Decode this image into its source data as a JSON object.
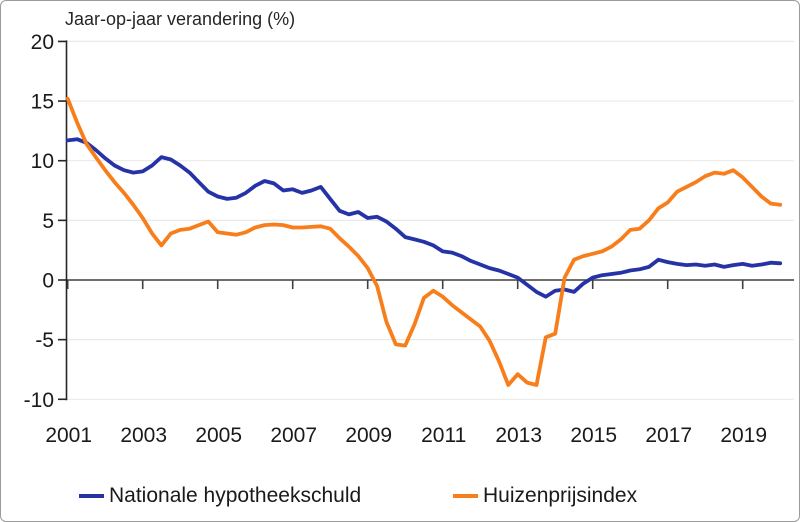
{
  "window": {
    "background": "#ffffff",
    "border_color": "#9b9b9b"
  },
  "chart_data": {
    "type": "line",
    "title": "Jaar-op-jaar verandering (%)",
    "xlabel": "",
    "ylabel": "",
    "ylim": [
      -10,
      20
    ],
    "xlim": [
      2001.0,
      2020.4
    ],
    "grid": "horizontal",
    "legend_position": "bottom",
    "x_start": 2001.0,
    "x_step": 0.25,
    "x_tick_labels": [
      "2001",
      "2003",
      "2005",
      "2007",
      "2009",
      "2011",
      "2013",
      "2015",
      "2017",
      "2019"
    ],
    "x_tick_years": [
      2001,
      2003,
      2005,
      2007,
      2009,
      2011,
      2013,
      2015,
      2017,
      2019
    ],
    "y_ticks": [
      20,
      15,
      10,
      5,
      0,
      -5,
      -10
    ],
    "y_tick_labels": [
      "20",
      "15",
      "10",
      "5",
      "0",
      "-5",
      "-10"
    ],
    "zero_line_color": "#3f3f3f",
    "gridline_color": "#e9e9e9",
    "axis_color": "#262626",
    "series": [
      {
        "name": "Nationale hypotheekschuld",
        "color": "#2533a6",
        "values": [
          11.7,
          11.8,
          11.5,
          10.9,
          10.2,
          9.6,
          9.2,
          9.0,
          9.1,
          9.6,
          10.3,
          10.1,
          9.6,
          9.0,
          8.2,
          7.4,
          7.0,
          6.8,
          6.9,
          7.3,
          7.9,
          8.3,
          8.1,
          7.5,
          7.6,
          7.3,
          7.5,
          7.8,
          6.8,
          5.8,
          5.5,
          5.7,
          5.2,
          5.3,
          4.9,
          4.3,
          3.6,
          3.4,
          3.2,
          2.9,
          2.4,
          2.3,
          2.0,
          1.6,
          1.3,
          1.0,
          0.8,
          0.5,
          0.2,
          -0.4,
          -1.0,
          -1.4,
          -0.9,
          -0.8,
          -1.0,
          -0.3,
          0.2,
          0.4,
          0.5,
          0.6,
          0.8,
          0.9,
          1.1,
          1.7,
          1.5,
          1.35,
          1.25,
          1.3,
          1.2,
          1.3,
          1.1,
          1.25,
          1.35,
          1.2,
          1.3,
          1.45,
          1.4
        ]
      },
      {
        "name": "Huizenprijsindex",
        "color": "#f87e1b",
        "values": [
          15.2,
          13.2,
          11.4,
          10.3,
          9.2,
          8.2,
          7.3,
          6.3,
          5.2,
          3.9,
          2.9,
          3.9,
          4.2,
          4.3,
          4.6,
          4.9,
          4.0,
          3.9,
          3.8,
          4.0,
          4.4,
          4.6,
          4.65,
          4.6,
          4.4,
          4.4,
          4.45,
          4.5,
          4.3,
          3.5,
          2.8,
          2.0,
          1.0,
          -0.5,
          -3.5,
          -5.4,
          -5.5,
          -3.7,
          -1.5,
          -0.9,
          -1.4,
          -2.1,
          -2.7,
          -3.3,
          -3.9,
          -5.1,
          -6.8,
          -8.8,
          -7.9,
          -8.6,
          -8.8,
          -4.8,
          -4.5,
          0.2,
          1.7,
          2.0,
          2.2,
          2.4,
          2.8,
          3.4,
          4.2,
          4.3,
          5.0,
          6.0,
          6.5,
          7.4,
          7.8,
          8.2,
          8.7,
          9.0,
          8.9,
          9.2,
          8.6,
          7.8,
          7.0,
          6.4,
          6.3
        ]
      }
    ]
  }
}
